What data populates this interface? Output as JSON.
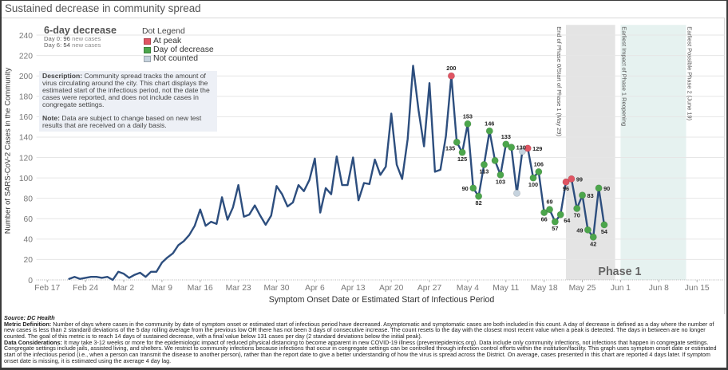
{
  "page": {
    "title": "Sustained decrease in community spread"
  },
  "kpi": {
    "title": "6-day decrease",
    "day0": {
      "label": "Day 0:",
      "value": "96",
      "suffix": "new cases"
    },
    "day6": {
      "label": "Day 6:",
      "value": "54",
      "suffix": "new cases"
    }
  },
  "legend": {
    "title": "Dot Legend",
    "items": [
      {
        "label": "At peak",
        "color": "#e05563"
      },
      {
        "label": "Day of decrease",
        "color": "#4ca64c"
      },
      {
        "label": "Not counted",
        "color": "#c6d3de"
      }
    ]
  },
  "description": {
    "label": "Description:",
    "text": "Community spread tracks the amount of virus circulating around the city. This chart displays the estimated start of the infectious period, not the date the cases were reported, and does not include cases in congregate settings.",
    "note_label": "Note:",
    "note_text": "Data are subject to change based on new test results that are received on a daily basis."
  },
  "footer": {
    "source": "Source: DC Health",
    "metric_label": "Metric Definition:",
    "metric_text": "Number of days where cases in the community by date of symptom onset or estimated start of infectious period have decreased. Asymptomatic and symptomatic cases are both included in this count. A day of decrease is defined as a day where the number of new cases is less than 2 standard deviations of the 5 day rolling average from the previous low OR there has not been 3 days of consecutive increase. The count resets to the day with the closest most recent value when a peak is detected. The days in between are no longer counted. The goal of this metric is to reach 14 days of sustained decrease, with a final value below 131 cases per day (2 standard deviations below the initial peak).",
    "considerations_label": "Data Considerations:",
    "considerations_text": "It may take 3-12 weeks or more for the epidemiologic impact of reduced physical distancing to become apparent in new COVID-19 illness (preventepidemics.org). Data include only community infections, not infections that happen in congregate settings. Congregate settings include jails, assisted living, and shelters. We restrict to community infections because infections that occur in congregate settings can be controlled through infection control efforts within the institution/facility. This graph uses symptom onset date or estimated start of the infectious period (i.e., when a person can transmit the disease to another person), rather than the report date to give a better understanding of how the virus is spread across the District. On average, cases presented in this chart are reported 4 days later. If symptom onset date is missing, it is estimated using the average 4 day lag."
  },
  "colors": {
    "line": "#2d4e7e",
    "peak": "#e05563",
    "decrease": "#4ca64c",
    "not_counted": "#c6d3de",
    "phase_band": "#e4e4e4",
    "impact_band": "#e6f2f0",
    "grid": "#e6e6e6"
  },
  "chart_data": {
    "type": "line",
    "title": "Sustained decrease in community spread",
    "xlabel": "Symptom Onset Date or Estimated Start of Infectious Period",
    "ylabel": "Number of SARS-CoV-2 Cases in the Community",
    "ylim": [
      0,
      250
    ],
    "yticks": [
      0,
      20,
      40,
      60,
      80,
      100,
      120,
      140,
      160,
      180,
      200,
      220,
      240
    ],
    "xlim": [
      "Feb 15",
      "Jun 20"
    ],
    "xticks": [
      "Feb 17",
      "Feb 24",
      "Mar 2",
      "Mar 9",
      "Mar 16",
      "Mar 23",
      "Mar 30",
      "Apr 6",
      "Apr 13",
      "Apr 20",
      "Apr 27",
      "May 4",
      "May 11",
      "May 18",
      "May 25",
      "Jun 1",
      "Jun 8",
      "Jun 15"
    ],
    "grid": true,
    "legend": "top-left",
    "series": [
      {
        "name": "Community cases",
        "x": [
          "Feb 21",
          "Feb 22",
          "Feb 23",
          "Feb 24",
          "Feb 25",
          "Feb 26",
          "Feb 27",
          "Feb 28",
          "Feb 29",
          "Mar 1",
          "Mar 2",
          "Mar 3",
          "Mar 4",
          "Mar 5",
          "Mar 6",
          "Mar 7",
          "Mar 8",
          "Mar 9",
          "Mar 10",
          "Mar 11",
          "Mar 12",
          "Mar 13",
          "Mar 14",
          "Mar 15",
          "Mar 16",
          "Mar 17",
          "Mar 18",
          "Mar 19",
          "Mar 20",
          "Mar 21",
          "Mar 22",
          "Mar 23",
          "Mar 24",
          "Mar 25",
          "Mar 26",
          "Mar 27",
          "Mar 28",
          "Mar 29",
          "Mar 30",
          "Mar 31",
          "Apr 1",
          "Apr 2",
          "Apr 3",
          "Apr 4",
          "Apr 5",
          "Apr 6",
          "Apr 7",
          "Apr 8",
          "Apr 9",
          "Apr 10",
          "Apr 11",
          "Apr 12",
          "Apr 13",
          "Apr 14",
          "Apr 15",
          "Apr 16",
          "Apr 17",
          "Apr 18",
          "Apr 19",
          "Apr 20",
          "Apr 21",
          "Apr 22",
          "Apr 23",
          "Apr 24",
          "Apr 25",
          "Apr 26",
          "Apr 27",
          "Apr 28",
          "Apr 29",
          "Apr 30",
          "May 1",
          "May 2",
          "May 3",
          "May 4",
          "May 5",
          "May 6",
          "May 7",
          "May 8",
          "May 9",
          "May 10",
          "May 11",
          "May 12",
          "May 13",
          "May 14",
          "May 15",
          "May 16",
          "May 17",
          "May 18",
          "May 19",
          "May 20",
          "May 21",
          "May 22",
          "May 23",
          "May 24",
          "May 25",
          "May 26",
          "May 27",
          "May 28",
          "May 29"
        ],
        "y": [
          1,
          3,
          1,
          2,
          3,
          3,
          2,
          3,
          0,
          8,
          6,
          2,
          5,
          7,
          3,
          8,
          8,
          17,
          22,
          26,
          34,
          38,
          44,
          53,
          69,
          53,
          57,
          55,
          81,
          59,
          71,
          93,
          62,
          64,
          73,
          63,
          54,
          63,
          92,
          84,
          72,
          76,
          93,
          87,
          98,
          119,
          66,
          90,
          84,
          121,
          93,
          93,
          120,
          78,
          95,
          94,
          118,
          103,
          111,
          163,
          113,
          99,
          138,
          210,
          166,
          131,
          193,
          106,
          108,
          141,
          200,
          135,
          125,
          153,
          90,
          82,
          113,
          146,
          117,
          103,
          133,
          130,
          85,
          126,
          129,
          100,
          106,
          66,
          69,
          57,
          64,
          96,
          99,
          70,
          83,
          49,
          42,
          90,
          54
        ]
      }
    ],
    "markers": [
      {
        "x": "May 1",
        "y": 200,
        "status": "peak",
        "label": "200",
        "label_pos": "above"
      },
      {
        "x": "May 2",
        "y": 135,
        "status": "decrease",
        "label": "135",
        "label_pos": "below-left"
      },
      {
        "x": "May 3",
        "y": 125,
        "status": "decrease",
        "label": "125",
        "label_pos": "below"
      },
      {
        "x": "May 4",
        "y": 153,
        "status": "decrease",
        "label": "153",
        "label_pos": "above"
      },
      {
        "x": "May 5",
        "y": 90,
        "status": "decrease",
        "label": "90",
        "label_pos": "left"
      },
      {
        "x": "May 6",
        "y": 82,
        "status": "decrease",
        "label": "82",
        "label_pos": "below"
      },
      {
        "x": "May 7",
        "y": 113,
        "status": "decrease",
        "label": "113",
        "label_pos": "below"
      },
      {
        "x": "May 8",
        "y": 146,
        "status": "decrease",
        "label": "146",
        "label_pos": "above"
      },
      {
        "x": "May 9",
        "y": 117,
        "status": "decrease",
        "label": null,
        "label_pos": null
      },
      {
        "x": "May 10",
        "y": 103,
        "status": "decrease",
        "label": "103",
        "label_pos": "below"
      },
      {
        "x": "May 11",
        "y": 133,
        "status": "decrease",
        "label": "133",
        "label_pos": "above"
      },
      {
        "x": "May 12",
        "y": 130,
        "status": "decrease",
        "label": "130",
        "label_pos": "right"
      },
      {
        "x": "May 13",
        "y": 85,
        "status": "not_counted",
        "label": null,
        "label_pos": null
      },
      {
        "x": "May 14",
        "y": 126,
        "status": "not_counted",
        "label": null,
        "label_pos": null
      },
      {
        "x": "May 15",
        "y": 129,
        "status": "peak",
        "label": "129",
        "label_pos": "right"
      },
      {
        "x": "May 16",
        "y": 100,
        "status": "decrease",
        "label": "100",
        "label_pos": "below"
      },
      {
        "x": "May 17",
        "y": 106,
        "status": "decrease",
        "label": "106",
        "label_pos": "above"
      },
      {
        "x": "May 18",
        "y": 66,
        "status": "decrease",
        "label": "66",
        "label_pos": "below"
      },
      {
        "x": "May 19",
        "y": 69,
        "status": "decrease",
        "label": "69",
        "label_pos": "above"
      },
      {
        "x": "May 20",
        "y": 57,
        "status": "decrease",
        "label": "57",
        "label_pos": "below"
      },
      {
        "x": "May 21",
        "y": 64,
        "status": "decrease",
        "label": "64",
        "label_pos": "below-right"
      },
      {
        "x": "May 22",
        "y": 96,
        "status": "peak",
        "label": "96",
        "label_pos": "below"
      },
      {
        "x": "May 23",
        "y": 99,
        "status": "peak",
        "label": "99",
        "label_pos": "right"
      },
      {
        "x": "May 24",
        "y": 70,
        "status": "decrease",
        "label": "70",
        "label_pos": "below"
      },
      {
        "x": "May 25",
        "y": 83,
        "status": "decrease",
        "label": "83",
        "label_pos": "right"
      },
      {
        "x": "May 26",
        "y": 49,
        "status": "decrease",
        "label": "49",
        "label_pos": "left"
      },
      {
        "x": "May 27",
        "y": 42,
        "status": "decrease",
        "label": "42",
        "label_pos": "below"
      },
      {
        "x": "May 28",
        "y": 90,
        "status": "decrease",
        "label": "90",
        "label_pos": "right"
      },
      {
        "x": "May 29",
        "y": 54,
        "status": "decrease",
        "label": "54",
        "label_pos": "below"
      }
    ],
    "bands": [
      {
        "name": "phase-transition",
        "start": "May 22",
        "end": "May 31",
        "color_key": "phase_band"
      },
      {
        "name": "reopening-impact",
        "start": "Jun 1",
        "end": "Jun 13",
        "color_key": "impact_band"
      }
    ],
    "annotations": [
      {
        "text": "End of Phase 0/Start of Phase 1 (May 29)",
        "x": "May 22",
        "orientation": "vertical",
        "side": "left"
      },
      {
        "text": "Earliest Impact of Phase 1 Reopening",
        "x": "Jun 1",
        "orientation": "vertical",
        "side": "right"
      },
      {
        "text": "Earliest Possible Phase 2 (June 19)",
        "x": "Jun 13",
        "orientation": "vertical",
        "side": "right"
      },
      {
        "text": "Phase 1",
        "x": "Jun 1",
        "orientation": "horizontal",
        "side": "bottom"
      }
    ]
  }
}
